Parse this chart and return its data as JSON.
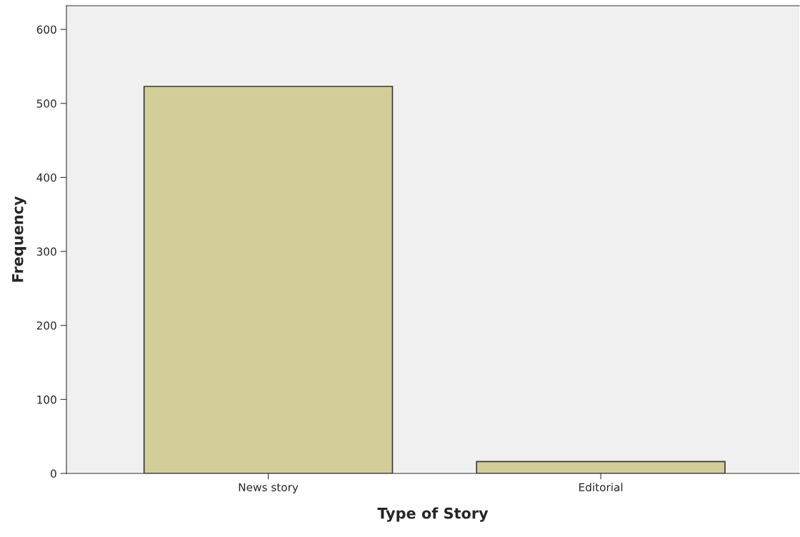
{
  "chart_data": {
    "type": "bar",
    "xlabel": "Type of Story",
    "ylabel": "Frequency",
    "categories": [
      "News story",
      "Editorial"
    ],
    "values": [
      523,
      16
    ],
    "color": "#d3ce97",
    "ylim": [
      0,
      632
    ],
    "yticks": [
      0,
      100,
      200,
      300,
      400,
      500,
      600
    ],
    "grid": false,
    "legend": false
  }
}
